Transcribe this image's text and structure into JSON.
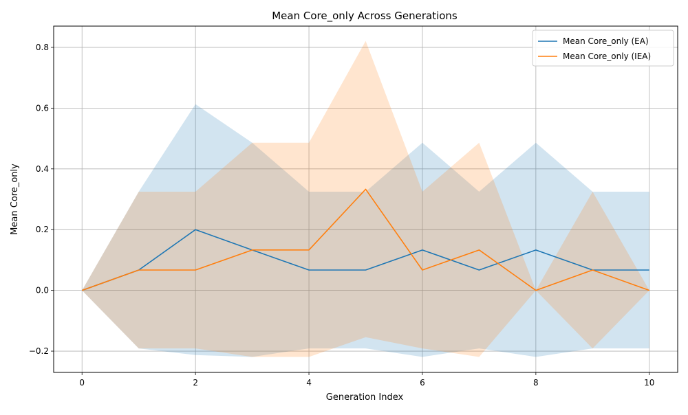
{
  "chart_data": {
    "type": "line",
    "title": "Mean Core_only Across Generations",
    "xlabel": "Generation Index",
    "ylabel": "Mean Core_only",
    "x": [
      0,
      1,
      2,
      3,
      4,
      5,
      6,
      7,
      8,
      9,
      10
    ],
    "xlim": [
      -0.5,
      10.5
    ],
    "ylim": [
      -0.27,
      0.87
    ],
    "xticks": [
      0,
      2,
      4,
      6,
      8,
      10
    ],
    "xtick_labels": [
      "0",
      "2",
      "4",
      "6",
      "8",
      "10"
    ],
    "yticks": [
      -0.2,
      0.0,
      0.2,
      0.4,
      0.6,
      0.8
    ],
    "ytick_labels": [
      "−0.2",
      "0.0",
      "0.2",
      "0.4",
      "0.6",
      "0.8"
    ],
    "grid": true,
    "legend_position": "top-right",
    "series": [
      {
        "name": "Mean Core_only (EA)",
        "color": "#1f77b4",
        "band_color": "#1f77b4",
        "values": [
          0.0,
          0.067,
          0.2,
          0.133,
          0.067,
          0.067,
          0.133,
          0.067,
          0.133,
          0.067,
          0.067
        ],
        "upper": [
          0.0,
          0.325,
          0.613,
          0.486,
          0.325,
          0.325,
          0.486,
          0.325,
          0.486,
          0.325,
          0.325
        ],
        "lower": [
          0.0,
          -0.191,
          -0.213,
          -0.219,
          -0.191,
          -0.191,
          -0.219,
          -0.191,
          -0.219,
          -0.191,
          -0.191
        ]
      },
      {
        "name": "Mean Core_only (IEA)",
        "color": "#ff7f0e",
        "band_color": "#ff7f0e",
        "values": [
          0.0,
          0.067,
          0.067,
          0.133,
          0.133,
          0.333,
          0.067,
          0.133,
          0.0,
          0.067,
          0.0
        ],
        "upper": [
          0.0,
          0.325,
          0.325,
          0.486,
          0.486,
          0.821,
          0.325,
          0.486,
          0.0,
          0.325,
          0.0
        ],
        "lower": [
          0.0,
          -0.191,
          -0.191,
          -0.219,
          -0.219,
          -0.154,
          -0.191,
          -0.219,
          0.0,
          -0.191,
          0.0
        ]
      }
    ]
  }
}
